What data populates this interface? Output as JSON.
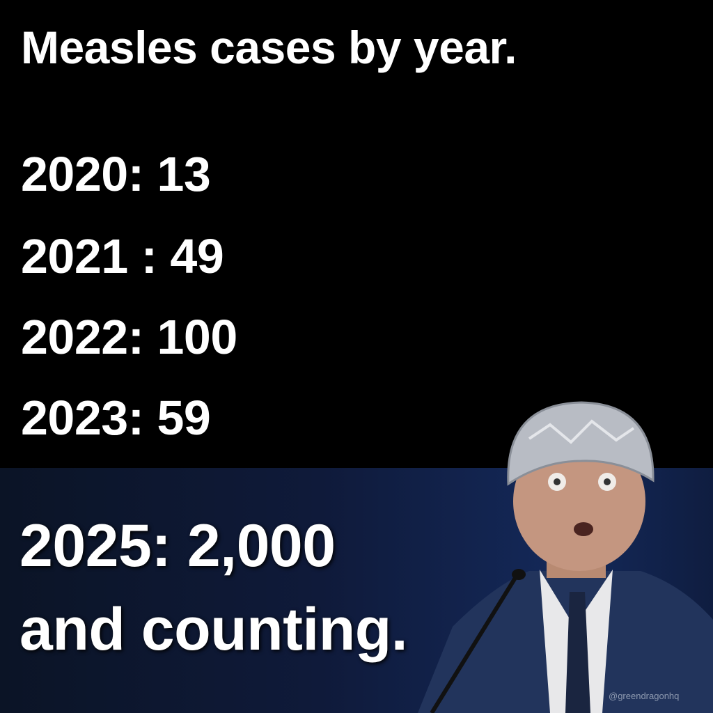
{
  "title": "Measles cases by year.",
  "cases": [
    {
      "text": "2020: 13"
    },
    {
      "text": "2021 : 49"
    },
    {
      "text": "2022: 100"
    },
    {
      "text": "2023: 59"
    }
  ],
  "highlight": {
    "line1": "2025: 2,000",
    "line2": "and counting."
  },
  "watermark": "@greendragonhq",
  "colors": {
    "top_bg": "#000000",
    "bottom_bg": "#13254f",
    "text": "#ffffff"
  }
}
